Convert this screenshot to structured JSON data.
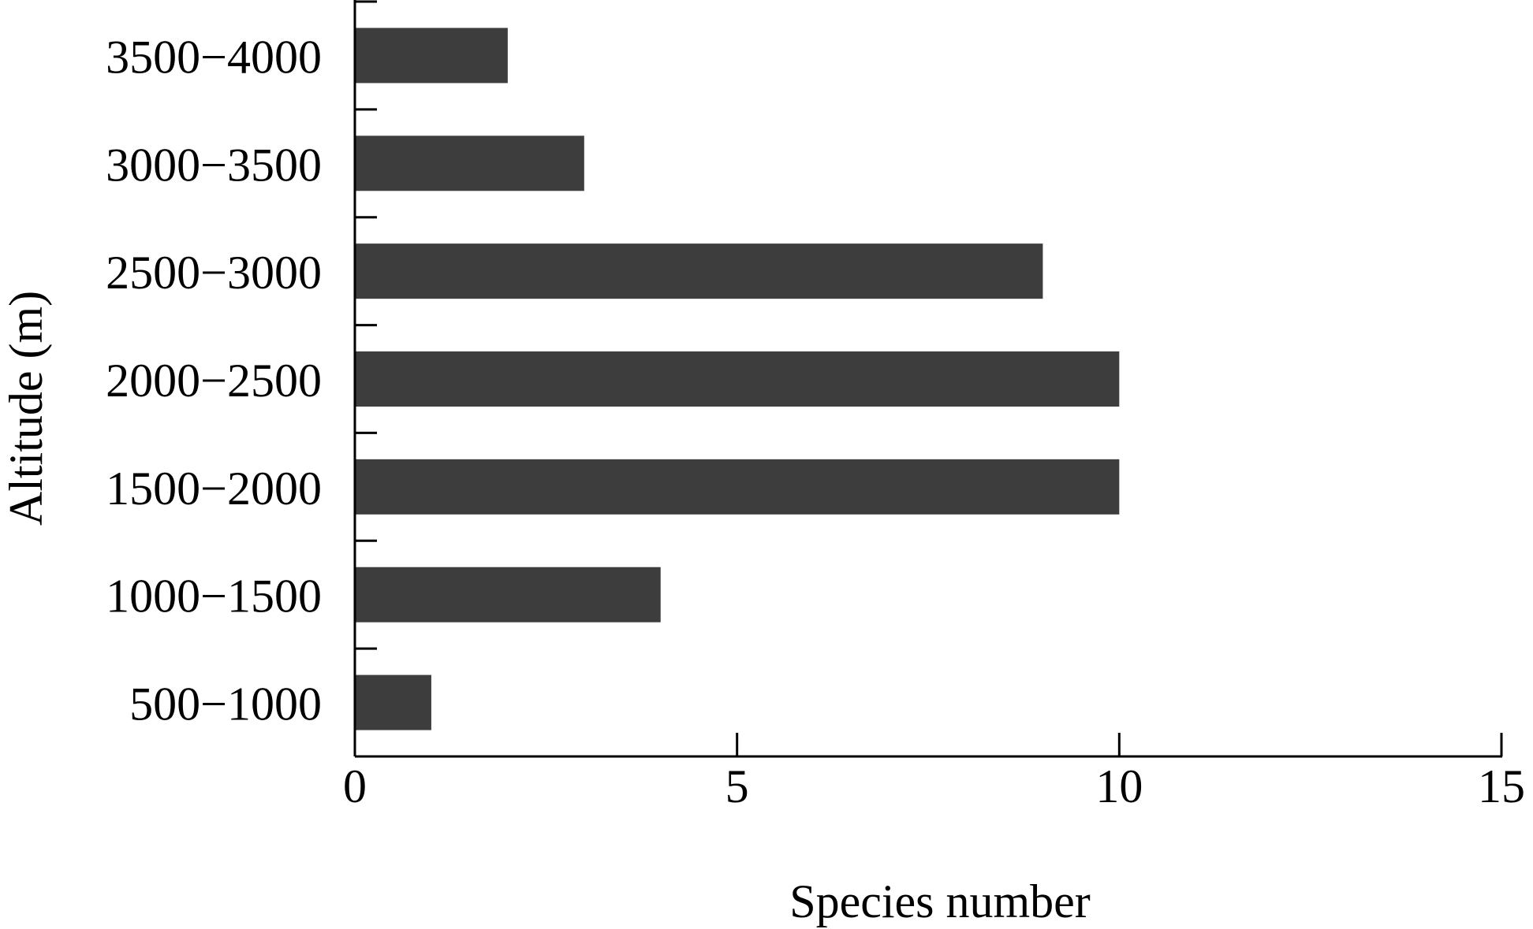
{
  "chart_data": {
    "type": "bar",
    "orientation": "horizontal",
    "title": "",
    "xlabel": "Species number",
    "ylabel": "Altitude (m)",
    "xlim": [
      0,
      15
    ],
    "xticks": [
      0,
      5,
      10,
      15
    ],
    "categories": [
      "500−1000",
      "1000−1500",
      "1500−2000",
      "2000−2500",
      "2500−3000",
      "3000−3500",
      "3500−4000"
    ],
    "values": [
      1,
      4,
      10,
      10,
      9,
      3,
      2
    ],
    "grid": false,
    "legend": false,
    "colors": {
      "bar": "#3d3d3d",
      "axis": "#000000"
    }
  }
}
